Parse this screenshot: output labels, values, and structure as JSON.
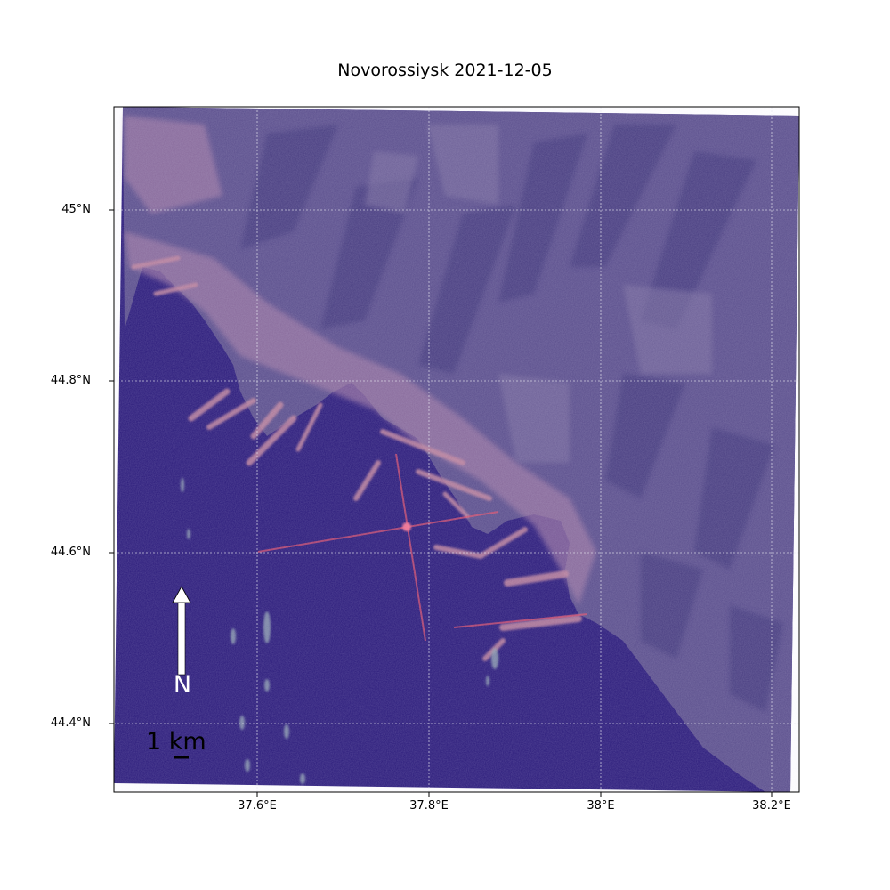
{
  "title": "Novorossiysk 2021-12-05",
  "latitude_ticks": [
    "45°N",
    "44.8°N",
    "44.6°N",
    "44.4°N"
  ],
  "longitude_ticks": [
    "37.6°E",
    "37.8°E",
    "38°E",
    "38.2°E"
  ],
  "north_arrow": {
    "label": "N",
    "icon": "north-arrow-icon"
  },
  "scale_bar": {
    "label": "1 km"
  },
  "colors": {
    "water": "#2a1a7a",
    "land": "#5a4e8c",
    "ridge_dark": "#453a7e",
    "urban": "#a27aa4",
    "pier": "#c0849c",
    "bright_target": "#e0506a",
    "grid": "#e8e8f0",
    "frame": "#000000"
  }
}
